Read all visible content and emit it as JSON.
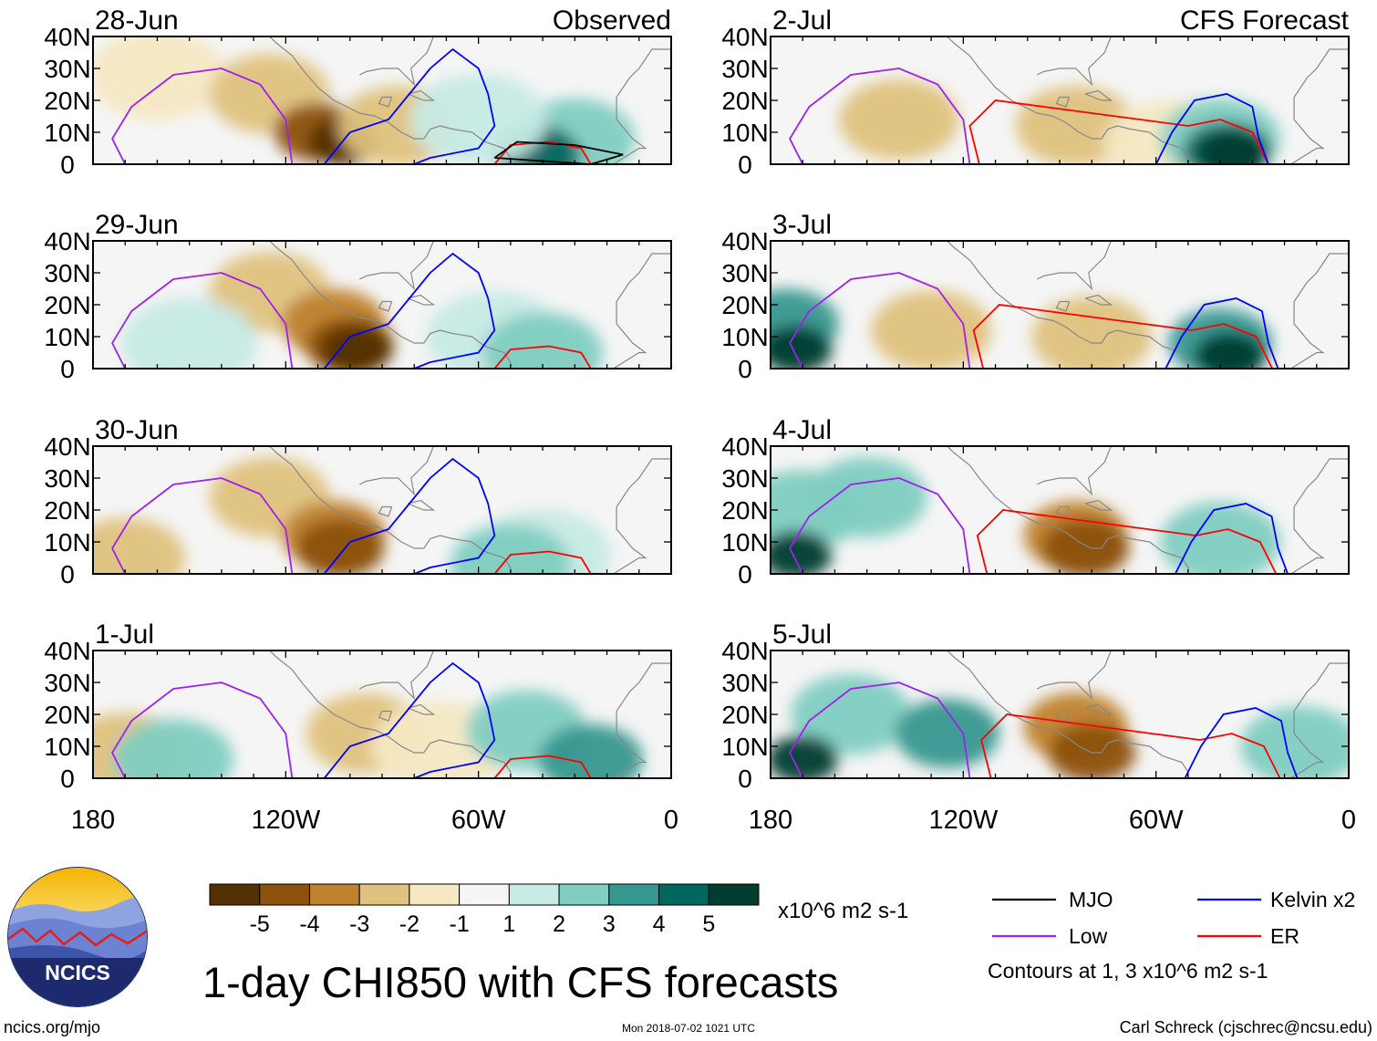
{
  "chart_data": {
    "type": "heatmap",
    "title": "1-day CHI850 with CFS forecasts",
    "units": "x10^6 m2 s-1",
    "y_axis": {
      "label": "",
      "ticks": [
        "40N",
        "30N",
        "20N",
        "10N",
        "0"
      ],
      "range": [
        0,
        40
      ]
    },
    "x_axis": {
      "label": "",
      "ticks": [
        "180",
        "120W",
        "60W",
        "0"
      ],
      "range": [
        -180,
        0
      ]
    },
    "columns": [
      {
        "header": "Observed",
        "panels": [
          {
            "date": "28-Jun",
            "cells": [
              {
                "lon": -160,
                "lat": 28,
                "v": -1
              },
              {
                "lon": -125,
                "lat": 22,
                "v": -2
              },
              {
                "lon": -110,
                "lat": 10,
                "v": -4
              },
              {
                "lon": -102,
                "lat": 7,
                "v": -5
              },
              {
                "lon": -85,
                "lat": 12,
                "v": -2
              },
              {
                "lon": -30,
                "lat": 8,
                "v": 2
              },
              {
                "lon": -42,
                "lat": 3,
                "v": 4
              },
              {
                "lon": -60,
                "lat": 14,
                "v": 1
              }
            ]
          },
          {
            "date": "29-Jun",
            "cells": [
              {
                "lon": -125,
                "lat": 24,
                "v": -2
              },
              {
                "lon": -105,
                "lat": 14,
                "v": -3
              },
              {
                "lon": -100,
                "lat": 7,
                "v": -4
              },
              {
                "lon": -98,
                "lat": 6,
                "v": -5
              },
              {
                "lon": -55,
                "lat": 10,
                "v": 1
              },
              {
                "lon": -40,
                "lat": 5,
                "v": 2
              },
              {
                "lon": -150,
                "lat": 8,
                "v": 1
              }
            ]
          },
          {
            "date": "30-Jun",
            "cells": [
              {
                "lon": -125,
                "lat": 24,
                "v": -2
              },
              {
                "lon": -105,
                "lat": 12,
                "v": -3
              },
              {
                "lon": -103,
                "lat": 8,
                "v": -4
              },
              {
                "lon": -170,
                "lat": 5,
                "v": -2
              },
              {
                "lon": -40,
                "lat": 6,
                "v": 1
              },
              {
                "lon": -50,
                "lat": 3,
                "v": 2
              }
            ]
          },
          {
            "date": "1-Jul",
            "cells": [
              {
                "lon": -95,
                "lat": 14,
                "v": -2
              },
              {
                "lon": -72,
                "lat": 10,
                "v": -1
              },
              {
                "lon": -170,
                "lat": 8,
                "v": -2
              },
              {
                "lon": -45,
                "lat": 15,
                "v": 2
              },
              {
                "lon": -25,
                "lat": 6,
                "v": 3
              },
              {
                "lon": -155,
                "lat": 6,
                "v": 2
              }
            ]
          }
        ]
      },
      {
        "header": "CFS Forecast",
        "panels": [
          {
            "date": "2-Jul",
            "cells": [
              {
                "lon": -140,
                "lat": 14,
                "v": -2
              },
              {
                "lon": -85,
                "lat": 12,
                "v": -2
              },
              {
                "lon": -55,
                "lat": 6,
                "v": -1
              },
              {
                "lon": -40,
                "lat": 8,
                "v": 2
              },
              {
                "lon": -38,
                "lat": 4,
                "v": 4
              },
              {
                "lon": -36,
                "lat": 3,
                "v": 5
              }
            ]
          },
          {
            "date": "3-Jul",
            "cells": [
              {
                "lon": -175,
                "lat": 14,
                "v": 3
              },
              {
                "lon": -172,
                "lat": 6,
                "v": 5
              },
              {
                "lon": -130,
                "lat": 12,
                "v": -2
              },
              {
                "lon": -80,
                "lat": 10,
                "v": -2
              },
              {
                "lon": -40,
                "lat": 8,
                "v": 3
              },
              {
                "lon": -37,
                "lat": 4,
                "v": 5
              }
            ]
          },
          {
            "date": "4-Jul",
            "cells": [
              {
                "lon": -170,
                "lat": 20,
                "v": 2
              },
              {
                "lon": -172,
                "lat": 6,
                "v": 5
              },
              {
                "lon": -150,
                "lat": 24,
                "v": 2
              },
              {
                "lon": -85,
                "lat": 12,
                "v": -3
              },
              {
                "lon": -82,
                "lat": 8,
                "v": -4
              },
              {
                "lon": -40,
                "lat": 10,
                "v": 2
              }
            ]
          },
          {
            "date": "5-Jul",
            "cells": [
              {
                "lon": -155,
                "lat": 20,
                "v": 2
              },
              {
                "lon": -170,
                "lat": 6,
                "v": 5
              },
              {
                "lon": -125,
                "lat": 14,
                "v": 3
              },
              {
                "lon": -85,
                "lat": 16,
                "v": -3
              },
              {
                "lon": -80,
                "lat": 8,
                "v": -4
              },
              {
                "lon": -15,
                "lat": 10,
                "v": 2
              }
            ]
          }
        ]
      }
    ],
    "colorbar": {
      "labels": [
        "-5",
        "-4",
        "-3",
        "-2",
        "-1",
        "1",
        "2",
        "3",
        "4",
        "5"
      ],
      "colors": [
        "#543005",
        "#8c510a",
        "#bf812d",
        "#dfc27d",
        "#f6e8c3",
        "#f5f5f5",
        "#c7eae5",
        "#80cdc1",
        "#35978f",
        "#01665e",
        "#003c30"
      ]
    },
    "legend": {
      "items": [
        {
          "label": "MJO",
          "color": "#000000"
        },
        {
          "label": "Kelvin x2",
          "color": "#0000ff"
        },
        {
          "label": "Low",
          "color": "#a020f0"
        },
        {
          "label": "ER",
          "color": "#ff0000"
        }
      ],
      "note": "Contours at 1, 3 x10^6 m2 s-1"
    }
  },
  "logo": {
    "text": "NCICS"
  },
  "footer": {
    "left": "ncics.org/mjo",
    "center": "Mon 2018-07-02 1021 UTC",
    "right": "Carl Schreck (cjschrec@ncsu.edu)"
  }
}
